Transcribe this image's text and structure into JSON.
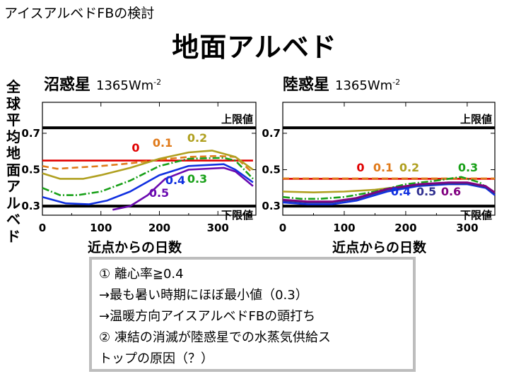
{
  "header": {
    "kicker": "アイスアルベドFBの検討",
    "title": "地面アルベド"
  },
  "y_axis_label": "全球平均地面アルベド",
  "notes": [
    "①  離心率≧0.4",
    "→最も暑い時期にほぼ最小値（0.3）",
    "→温暖方向アイスアルベドFBの頭打ち",
    "②  凍結の消滅が陸惑星での水蒸気供給ス",
    "      トップの原因（？）"
  ],
  "chart_data": [
    {
      "type": "line",
      "name": "沼惑星",
      "flux": "1365Wm",
      "flux_exp": "-2",
      "xlabel": "近点からの日数",
      "xlim": [
        0,
        365
      ],
      "ylim": [
        0.25,
        0.87
      ],
      "xticks": [
        "0",
        "100",
        "200",
        "300"
      ],
      "yticks": [
        "0.3",
        "0.5",
        "0.7"
      ],
      "upper_limit": {
        "value": 0.73,
        "label": "上限値"
      },
      "lower_limit": {
        "value": 0.3,
        "label": "下限値"
      },
      "series": [
        {
          "name": "0",
          "color": "#e00000",
          "dash": "solid",
          "x": [
            0,
            50,
            100,
            150,
            200,
            250,
            300,
            330,
            360
          ],
          "y": [
            0.55,
            0.55,
            0.55,
            0.55,
            0.55,
            0.55,
            0.55,
            0.55,
            0.55
          ]
        },
        {
          "name": "0.1",
          "color": "#e07a1a",
          "dash": "dashed",
          "x": [
            0,
            25,
            50,
            100,
            150,
            200,
            250,
            300,
            330,
            360
          ],
          "y": [
            0.52,
            0.505,
            0.51,
            0.52,
            0.535,
            0.555,
            0.57,
            0.575,
            0.57,
            0.48
          ]
        },
        {
          "name": "0.2",
          "color": "#b0a020",
          "dash": "solid",
          "x": [
            0,
            30,
            70,
            100,
            150,
            200,
            250,
            290,
            330,
            360
          ],
          "y": [
            0.48,
            0.45,
            0.45,
            0.47,
            0.51,
            0.56,
            0.595,
            0.605,
            0.57,
            0.5
          ]
        },
        {
          "name": "0.3",
          "color": "#18a018",
          "dash": "dashdot",
          "x": [
            0,
            30,
            60,
            100,
            150,
            200,
            250,
            310,
            330,
            360
          ],
          "y": [
            0.4,
            0.36,
            0.36,
            0.38,
            0.44,
            0.52,
            0.56,
            0.565,
            0.55,
            0.45
          ]
        },
        {
          "name": "0.4",
          "color": "#1030e0",
          "dash": "solid",
          "x": [
            0,
            40,
            80,
            110,
            150,
            200,
            250,
            310,
            330,
            360
          ],
          "y": [
            0.35,
            0.315,
            0.31,
            0.33,
            0.38,
            0.47,
            0.52,
            0.53,
            0.5,
            0.43
          ]
        },
        {
          "name": "0.5",
          "color": "#6a0ab0",
          "dash": "solid",
          "x": [
            120,
            150,
            180,
            210,
            250,
            310,
            330,
            360
          ],
          "y": [
            0.28,
            0.3,
            0.36,
            0.45,
            0.5,
            0.51,
            0.49,
            0.41
          ]
        }
      ]
    },
    {
      "type": "line",
      "name": "陸惑星",
      "flux": "1365Wm",
      "flux_exp": "-2",
      "xlabel": "近点からの日数",
      "xlim": [
        0,
        345
      ],
      "ylim": [
        0.25,
        0.87
      ],
      "xticks": [
        "0",
        "100",
        "200",
        "300"
      ],
      "yticks": [
        "0.3",
        "0.5",
        "0.7"
      ],
      "upper_limit": {
        "value": 0.73,
        "label": "上限値"
      },
      "lower_limit": {
        "value": 0.3,
        "label": "下限値"
      },
      "series": [
        {
          "name": "0",
          "color": "#e00000",
          "dash": "solid",
          "x": [
            0,
            345
          ],
          "y": [
            0.45,
            0.45
          ]
        },
        {
          "name": "0.1",
          "color": "#e07a1a",
          "dash": "dashed",
          "x": [
            0,
            345
          ],
          "y": [
            0.452,
            0.452
          ]
        },
        {
          "name": "0.2",
          "color": "#b0a020",
          "dash": "solid",
          "x": [
            0,
            50,
            100,
            150,
            200,
            250,
            300,
            330,
            345
          ],
          "y": [
            0.38,
            0.375,
            0.38,
            0.39,
            0.41,
            0.42,
            0.42,
            0.41,
            0.37
          ]
        },
        {
          "name": "0.3",
          "color": "#18a018",
          "dash": "dashdot",
          "x": [
            0,
            30,
            60,
            100,
            150,
            200,
            250,
            290,
            320,
            345
          ],
          "y": [
            0.35,
            0.34,
            0.34,
            0.35,
            0.38,
            0.42,
            0.44,
            0.46,
            0.43,
            0.37
          ]
        },
        {
          "name": "0.4",
          "color": "#1030e0",
          "dash": "solid",
          "x": [
            0,
            40,
            80,
            120,
            170,
            220,
            270,
            300,
            330,
            345
          ],
          "y": [
            0.32,
            0.31,
            0.31,
            0.33,
            0.38,
            0.41,
            0.42,
            0.42,
            0.4,
            0.36
          ]
        },
        {
          "name": "0.5",
          "color": "#303090",
          "dash": "solid",
          "x": [
            0,
            40,
            80,
            120,
            170,
            220,
            270,
            300,
            330,
            345
          ],
          "y": [
            0.33,
            0.32,
            0.32,
            0.34,
            0.39,
            0.415,
            0.425,
            0.425,
            0.405,
            0.37
          ]
        },
        {
          "name": "0.6",
          "color": "#800080",
          "dash": "solid",
          "x": [
            0,
            40,
            80,
            120,
            170,
            220,
            270,
            300,
            330,
            345
          ],
          "y": [
            0.335,
            0.325,
            0.325,
            0.345,
            0.395,
            0.42,
            0.43,
            0.43,
            0.41,
            0.375
          ]
        }
      ]
    }
  ]
}
